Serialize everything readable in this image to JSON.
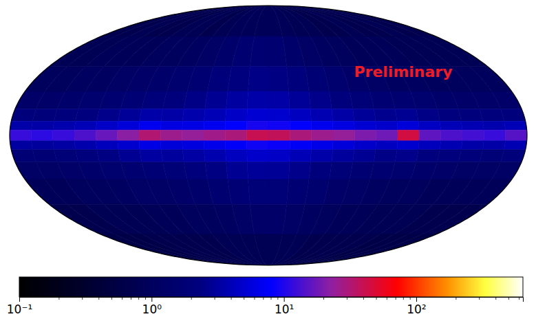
{
  "chart_data": {
    "type": "heatmap",
    "log": true,
    "annotation": "Preliminary",
    "lon_edges": [
      180,
      165,
      150,
      135,
      120,
      105,
      90,
      75,
      60,
      45,
      30,
      15,
      0,
      -15,
      -30,
      -45,
      -60,
      -75,
      -90,
      -105,
      -120,
      -135,
      -150,
      -165,
      -180
    ],
    "lat_edges": [
      90,
      60,
      40,
      25,
      15,
      8,
      3,
      -3,
      -8,
      -15,
      -25,
      -40,
      -60,
      -90
    ],
    "cells": [
      [
        0.7,
        0.7,
        0.8,
        0.7,
        0.7,
        0.8,
        0.8,
        0.7,
        0.8,
        0.9,
        0.9,
        0.9,
        0.9,
        0.9,
        0.8,
        0.8,
        0.7,
        0.7,
        0.8,
        0.7,
        0.7,
        0.8,
        0.7,
        0.7
      ],
      [
        0.8,
        0.8,
        0.9,
        0.9,
        0.9,
        1.0,
        1.0,
        1.1,
        1.2,
        1.4,
        1.6,
        1.7,
        1.6,
        1.4,
        1.2,
        1.1,
        1.0,
        0.9,
        0.9,
        0.9,
        0.8,
        0.8,
        0.8,
        0.8
      ],
      [
        1.0,
        1.0,
        1.1,
        1.1,
        1.2,
        1.3,
        1.4,
        1.5,
        1.7,
        2.0,
        2.3,
        2.5,
        2.4,
        2.1,
        1.8,
        1.5,
        1.3,
        1.2,
        1.1,
        1.1,
        1.0,
        1.0,
        1.0,
        1.0
      ],
      [
        1.3,
        1.3,
        1.4,
        1.5,
        1.6,
        1.8,
        2.0,
        2.2,
        2.5,
        2.8,
        3.2,
        3.5,
        3.4,
        3.0,
        2.6,
        2.2,
        1.9,
        1.7,
        1.6,
        1.5,
        1.4,
        1.3,
        1.3,
        1.3
      ],
      [
        2.0,
        2.0,
        2.1,
        2.3,
        2.6,
        3.0,
        3.5,
        3.4,
        3.6,
        4.0,
        4.6,
        5.2,
        5.0,
        4.4,
        3.8,
        3.4,
        3.0,
        2.7,
        2.8,
        2.5,
        2.3,
        2.2,
        2.1,
        2.2
      ],
      [
        3.5,
        3.4,
        3.6,
        4.0,
        4.6,
        5.5,
        7.0,
        6.0,
        6.2,
        7.0,
        8.0,
        9.5,
        9.0,
        7.8,
        6.8,
        6.0,
        5.2,
        4.8,
        5.5,
        4.5,
        4.0,
        3.8,
        3.6,
        4.0
      ],
      [
        12,
        11,
        12,
        14,
        17,
        22,
        32,
        26,
        24,
        27,
        30,
        40,
        38,
        30,
        26,
        24,
        20,
        18,
        45,
        16,
        14,
        13,
        12,
        15
      ],
      [
        3.2,
        3.1,
        3.3,
        3.6,
        4.2,
        5.0,
        6.2,
        5.5,
        5.8,
        6.5,
        7.5,
        9.0,
        8.6,
        7.4,
        6.4,
        5.6,
        4.8,
        4.4,
        5.0,
        4.2,
        3.8,
        3.5,
        3.4,
        3.8
      ],
      [
        1.8,
        1.8,
        1.9,
        2.1,
        2.4,
        2.8,
        3.2,
        3.1,
        3.3,
        3.7,
        4.3,
        4.8,
        4.6,
        4.0,
        3.5,
        3.1,
        2.8,
        2.5,
        2.6,
        2.3,
        2.1,
        2.0,
        1.9,
        2.0
      ],
      [
        1.2,
        1.2,
        1.3,
        1.4,
        1.5,
        1.6,
        1.8,
        1.9,
        2.1,
        2.4,
        2.8,
        3.0,
        2.9,
        2.6,
        2.2,
        1.9,
        1.7,
        1.6,
        1.5,
        1.4,
        1.3,
        1.2,
        1.2,
        1.2
      ],
      [
        0.9,
        0.9,
        1.0,
        1.0,
        1.1,
        1.2,
        1.2,
        1.3,
        1.4,
        1.6,
        1.8,
        1.9,
        1.9,
        1.7,
        1.5,
        1.3,
        1.2,
        1.1,
        1.0,
        1.0,
        0.9,
        0.9,
        0.9,
        0.9
      ],
      [
        0.7,
        0.7,
        0.8,
        0.8,
        0.8,
        0.9,
        0.9,
        1.0,
        1.0,
        1.1,
        1.2,
        1.3,
        1.3,
        1.2,
        1.1,
        1.0,
        0.9,
        0.9,
        0.8,
        0.8,
        0.8,
        0.7,
        0.7,
        0.7
      ],
      [
        0.6,
        0.6,
        0.6,
        0.7,
        0.7,
        0.7,
        0.7,
        0.7,
        0.8,
        0.8,
        0.8,
        0.8,
        0.8,
        0.8,
        0.8,
        0.7,
        0.7,
        0.7,
        0.7,
        0.7,
        0.6,
        0.6,
        0.6,
        0.6
      ]
    ],
    "colorbar": {
      "range": [
        0.1,
        640
      ],
      "ticks": [
        {
          "value": 0.1,
          "label": "10⁻¹"
        },
        {
          "value": 1,
          "label": "10⁰"
        },
        {
          "value": 10,
          "label": "10¹"
        },
        {
          "value": 100,
          "label": "10²"
        }
      ],
      "minor_ticks": [
        0.2,
        0.3,
        0.4,
        0.5,
        0.6,
        0.7,
        0.8,
        0.9,
        2,
        3,
        4,
        5,
        6,
        7,
        8,
        9,
        20,
        30,
        40,
        50,
        60,
        70,
        80,
        90,
        200,
        300,
        400,
        500,
        600
      ]
    }
  }
}
